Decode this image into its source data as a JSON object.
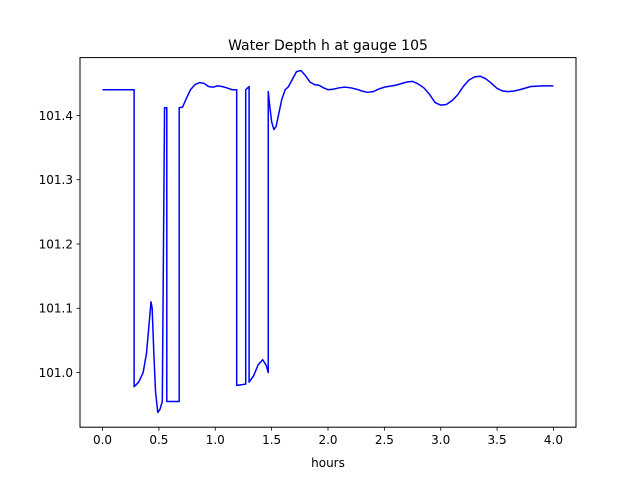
{
  "chart_data": {
    "type": "line",
    "title": "Water Depth h at gauge 105",
    "xlabel": "hours",
    "ylabel": "",
    "xlim": [
      -0.2,
      4.2
    ],
    "ylim": [
      100.915,
      101.49
    ],
    "xticks": [
      0.0,
      0.5,
      1.0,
      1.5,
      2.0,
      2.5,
      3.0,
      3.5,
      4.0
    ],
    "xtick_labels": [
      "0.0",
      "0.5",
      "1.0",
      "1.5",
      "2.0",
      "2.5",
      "3.0",
      "3.5",
      "4.0"
    ],
    "yticks": [
      101.0,
      101.1,
      101.2,
      101.3,
      101.4
    ],
    "ytick_labels": [
      "101.0",
      "101.1",
      "101.2",
      "101.3",
      "101.4"
    ],
    "grid": false,
    "series": [
      {
        "color": "#0000ff",
        "x": [
          0.0,
          0.1,
          0.2,
          0.28,
          0.28,
          0.32,
          0.36,
          0.39,
          0.41,
          0.43,
          0.44,
          0.455,
          0.47,
          0.49,
          0.51,
          0.53,
          0.55,
          0.55,
          0.57,
          0.57,
          0.6,
          0.65,
          0.68,
          0.68,
          0.71,
          0.74,
          0.78,
          0.82,
          0.86,
          0.9,
          0.94,
          0.98,
          1.02,
          1.06,
          1.1,
          1.15,
          1.19,
          1.19,
          1.27,
          1.27,
          1.3,
          1.3,
          1.34,
          1.38,
          1.42,
          1.45,
          1.47,
          1.47,
          1.48,
          1.5,
          1.52,
          1.54,
          1.56,
          1.59,
          1.62,
          1.65,
          1.68,
          1.72,
          1.76,
          1.8,
          1.84,
          1.88,
          1.92,
          1.96,
          2.0,
          2.05,
          2.1,
          2.15,
          2.2,
          2.25,
          2.3,
          2.35,
          2.4,
          2.45,
          2.5,
          2.6,
          2.7,
          2.75,
          2.8,
          2.85,
          2.9,
          2.95,
          3.0,
          3.05,
          3.1,
          3.15,
          3.2,
          3.25,
          3.3,
          3.35,
          3.4,
          3.45,
          3.5,
          3.55,
          3.6,
          3.65,
          3.7,
          3.8,
          3.9,
          4.0
        ],
        "y": [
          101.44,
          101.44,
          101.44,
          101.44,
          100.978,
          100.985,
          101.0,
          101.03,
          101.07,
          101.11,
          101.1,
          101.03,
          100.97,
          100.938,
          100.943,
          100.955,
          101.41,
          101.412,
          101.412,
          100.955,
          100.955,
          100.955,
          100.955,
          101.412,
          101.413,
          101.425,
          101.44,
          101.448,
          101.451,
          101.45,
          101.445,
          101.444,
          101.446,
          101.445,
          101.443,
          101.44,
          101.44,
          100.98,
          100.982,
          101.44,
          101.445,
          100.985,
          100.995,
          101.012,
          101.02,
          101.012,
          101.0,
          101.437,
          101.42,
          101.39,
          101.378,
          101.383,
          101.4,
          101.425,
          101.44,
          101.445,
          101.455,
          101.468,
          101.47,
          101.462,
          101.452,
          101.448,
          101.447,
          101.443,
          101.44,
          101.441,
          101.443,
          101.444,
          101.443,
          101.441,
          101.438,
          101.436,
          101.437,
          101.441,
          101.444,
          101.447,
          101.452,
          101.453,
          101.449,
          101.443,
          101.433,
          101.42,
          101.416,
          101.417,
          101.423,
          101.432,
          101.445,
          101.455,
          101.46,
          101.461,
          101.457,
          101.45,
          101.442,
          101.438,
          101.437,
          101.438,
          101.44,
          101.445,
          101.446,
          101.446
        ]
      }
    ]
  }
}
